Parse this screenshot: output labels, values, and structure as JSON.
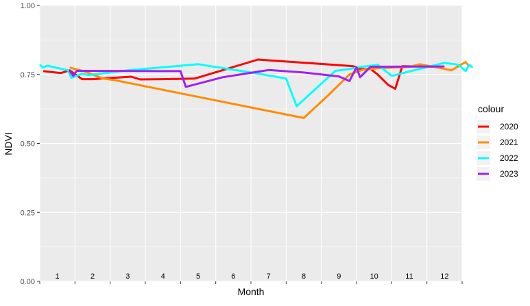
{
  "chart_data": {
    "type": "line",
    "xlabel": "Month",
    "ylabel": "NDVI",
    "ylim": [
      0,
      1
    ],
    "xlim": [
      0,
      12
    ],
    "y_ticks": [
      "0.00",
      "0.25",
      "0.50",
      "0.75",
      "1.00"
    ],
    "month_labels": [
      "1",
      "2",
      "3",
      "4",
      "5",
      "6",
      "7",
      "8",
      "9",
      "10",
      "11",
      "12"
    ],
    "grid": true,
    "legend": {
      "title": "colour",
      "position": "right"
    },
    "series": [
      {
        "name": "2020",
        "color": "#ff0000",
        "points": [
          [
            0.1,
            0.762
          ],
          [
            0.6,
            0.755
          ],
          [
            0.85,
            0.765
          ],
          [
            1.2,
            0.733
          ],
          [
            1.5,
            0.733
          ],
          [
            2.6,
            0.742
          ],
          [
            2.85,
            0.732
          ],
          [
            3.5,
            0.733
          ],
          [
            4.4,
            0.735
          ],
          [
            6.2,
            0.804
          ],
          [
            8.1,
            0.787
          ],
          [
            8.9,
            0.78
          ],
          [
            9.1,
            0.77
          ],
          [
            9.4,
            0.77
          ],
          [
            9.6,
            0.75
          ],
          [
            9.9,
            0.712
          ],
          [
            10.1,
            0.698
          ],
          [
            10.3,
            0.78
          ],
          [
            11.4,
            0.778
          ]
        ]
      },
      {
        "name": "2021",
        "color": "#ff8c00",
        "points": [
          [
            0.85,
            0.775
          ],
          [
            1.3,
            0.76
          ],
          [
            1.8,
            0.735
          ],
          [
            2.1,
            0.73
          ],
          [
            7.5,
            0.592
          ],
          [
            8.2,
            0.675
          ],
          [
            8.8,
            0.75
          ],
          [
            9.2,
            0.768
          ],
          [
            9.6,
            0.772
          ],
          [
            10.5,
            0.778
          ],
          [
            10.8,
            0.787
          ],
          [
            11.5,
            0.77
          ],
          [
            11.7,
            0.765
          ],
          [
            12.1,
            0.795
          ],
          [
            12.2,
            0.78
          ]
        ]
      },
      {
        "name": "2022",
        "color": "#00ffff",
        "points": [
          [
            0.0,
            0.785
          ],
          [
            0.1,
            0.775
          ],
          [
            0.2,
            0.782
          ],
          [
            0.8,
            0.765
          ],
          [
            0.9,
            0.738
          ],
          [
            1.2,
            0.752
          ],
          [
            1.4,
            0.748
          ],
          [
            2.5,
            0.765
          ],
          [
            4.5,
            0.787
          ],
          [
            6.2,
            0.753
          ],
          [
            7.0,
            0.735
          ],
          [
            7.3,
            0.635
          ],
          [
            8.4,
            0.763
          ],
          [
            8.7,
            0.768
          ],
          [
            8.9,
            0.772
          ],
          [
            9.15,
            0.778
          ],
          [
            9.3,
            0.78
          ],
          [
            9.6,
            0.785
          ],
          [
            10.0,
            0.745
          ],
          [
            11.5,
            0.792
          ],
          [
            11.9,
            0.785
          ],
          [
            12.1,
            0.762
          ],
          [
            12.2,
            0.785
          ],
          [
            12.3,
            0.775
          ]
        ]
      },
      {
        "name": "2023",
        "color": "#a020f0",
        "points": [
          [
            0.85,
            0.763
          ],
          [
            0.95,
            0.745
          ],
          [
            1.05,
            0.763
          ],
          [
            3.5,
            0.762
          ],
          [
            4.0,
            0.762
          ],
          [
            4.15,
            0.705
          ],
          [
            5.2,
            0.74
          ],
          [
            6.5,
            0.766
          ],
          [
            7.5,
            0.757
          ],
          [
            8.5,
            0.743
          ],
          [
            8.8,
            0.726
          ],
          [
            9.0,
            0.776
          ],
          [
            9.1,
            0.74
          ],
          [
            9.4,
            0.778
          ],
          [
            11.5,
            0.779
          ]
        ]
      }
    ]
  }
}
